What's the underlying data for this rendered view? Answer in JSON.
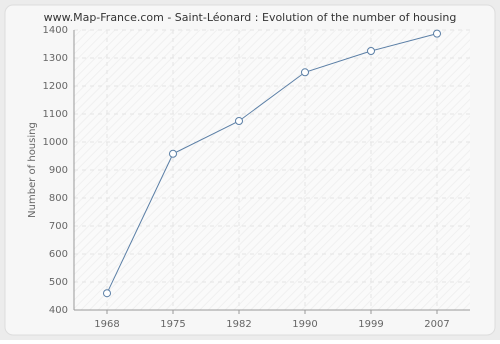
{
  "chart_data": {
    "type": "line",
    "title": "www.Map-France.com - Saint-Léonard : Evolution of the number of housing",
    "y_label": "Number of housing",
    "categories": [
      "1968",
      "1975",
      "1982",
      "1990",
      "1999",
      "2007"
    ],
    "series": [
      {
        "name": "Number of housing",
        "color": "#5b7fa6",
        "values": [
          460,
          958,
          1075,
          1249,
          1325,
          1387
        ]
      }
    ],
    "ylim": [
      400,
      1400
    ],
    "yticks": [
      400,
      500,
      600,
      700,
      800,
      900,
      1000,
      1100,
      1200,
      1300,
      1400
    ],
    "grid": true
  }
}
